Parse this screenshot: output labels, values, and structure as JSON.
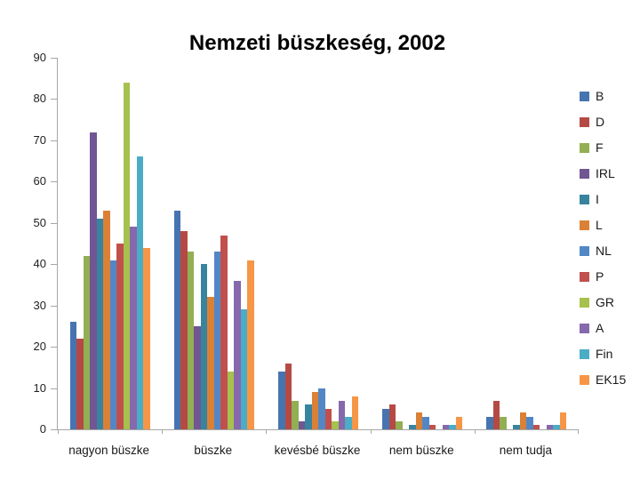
{
  "chart_data": {
    "type": "bar",
    "title": "Nemzeti büszkeség, 2002",
    "categories": [
      "nagyon büszke",
      "büszke",
      "kevésbé büszke",
      "nem büszke",
      "nem tudja"
    ],
    "series": [
      {
        "name": "B",
        "color": "#4674B1",
        "values": [
          26,
          53,
          14,
          5,
          3
        ]
      },
      {
        "name": "D",
        "color": "#B54A45",
        "values": [
          22,
          48,
          16,
          6,
          7
        ]
      },
      {
        "name": "F",
        "color": "#93AF53",
        "values": [
          42,
          43,
          7,
          2,
          3
        ]
      },
      {
        "name": "IRL",
        "color": "#705693",
        "values": [
          72,
          25,
          2,
          0,
          0
        ]
      },
      {
        "name": "I",
        "color": "#38849F",
        "values": [
          51,
          40,
          6,
          1,
          1
        ]
      },
      {
        "name": "L",
        "color": "#DA8137",
        "values": [
          53,
          32,
          9,
          4,
          4
        ]
      },
      {
        "name": "NL",
        "color": "#5287C6",
        "values": [
          41,
          43,
          10,
          3,
          3
        ]
      },
      {
        "name": "P",
        "color": "#C0504D",
        "values": [
          45,
          47,
          5,
          1,
          1
        ]
      },
      {
        "name": "GR",
        "color": "#A6C14D",
        "values": [
          84,
          14,
          2,
          0,
          0
        ]
      },
      {
        "name": "A",
        "color": "#8668AC",
        "values": [
          49,
          36,
          7,
          1,
          1
        ]
      },
      {
        "name": "Fin",
        "color": "#4BACC6",
        "values": [
          66,
          29,
          3,
          1,
          1
        ]
      },
      {
        "name": "EK15",
        "color": "#F79646",
        "values": [
          44,
          41,
          8,
          3,
          4
        ]
      }
    ],
    "ylim": [
      0,
      90
    ],
    "yticks": [
      0,
      10,
      20,
      30,
      40,
      50,
      60,
      70,
      80,
      90
    ],
    "grid": false,
    "legend_position": "right"
  }
}
